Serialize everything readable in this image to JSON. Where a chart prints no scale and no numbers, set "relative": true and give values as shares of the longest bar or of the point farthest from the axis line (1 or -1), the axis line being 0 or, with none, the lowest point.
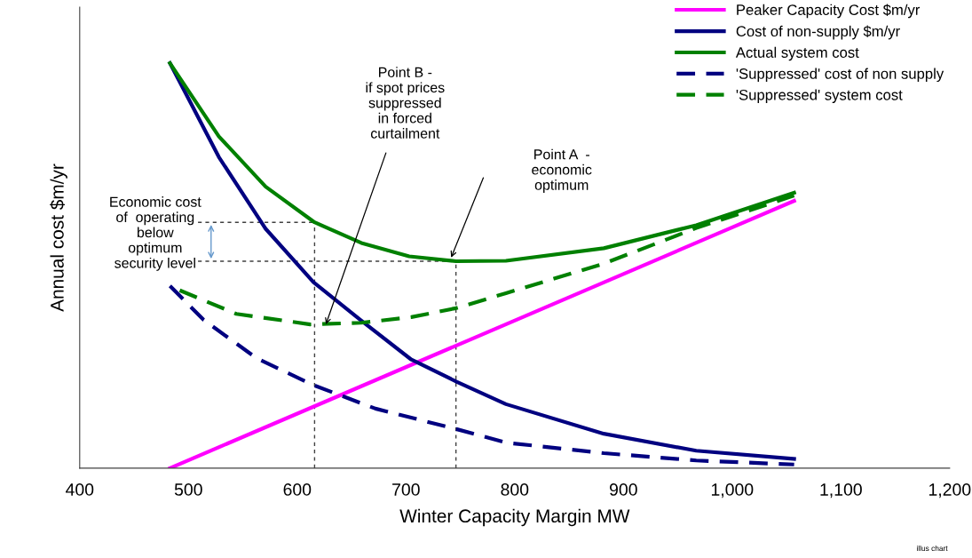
{
  "chart_data": {
    "type": "line",
    "relative": true,
    "xlabel": "Winter Capacity Margin MW",
    "ylabel": "Annual cost $m/yr",
    "xlim": [
      400,
      1200
    ],
    "xticks": [
      400,
      500,
      600,
      700,
      800,
      900,
      {
        "value": 1000,
        "label": "1,000"
      },
      {
        "value": 1100,
        "label": "1,100"
      },
      {
        "value": 1200,
        "label": "1,200"
      }
    ],
    "grid": false,
    "legend": "top right",
    "marker": "none",
    "series": [
      {
        "name": "Peaker Capacity Cost $m/yr",
        "color": "#ff00ff",
        "line_style": "solid",
        "x": [
          483,
          1057
        ],
        "values": [
          0,
          0.66
        ]
      },
      {
        "name": "Cost of non-supply $m/yr",
        "color": "#000080",
        "line_style": "solid",
        "x": [
          483,
          528,
          571,
          615,
          659,
          705,
          747,
          792,
          882,
          967,
          1057
        ],
        "values": [
          1.0,
          0.768,
          0.591,
          0.459,
          0.364,
          0.268,
          0.213,
          0.158,
          0.085,
          0.043,
          0.023
        ]
      },
      {
        "name": "Actual system cost",
        "color": "#008000",
        "line_style": "solid",
        "x": [
          483,
          528,
          571,
          616,
          659,
          703,
          746,
          792,
          882,
          967,
          1057
        ],
        "values": [
          1.0,
          0.819,
          0.695,
          0.607,
          0.556,
          0.523,
          0.511,
          0.512,
          0.543,
          0.6,
          0.68
        ]
      },
      {
        "name": "'Suppressed' cost of non supply",
        "color": "#000080",
        "line_style": "dashed",
        "x": [
          483,
          514,
          563,
          615,
          672,
          747,
          792,
          882,
          967,
          1057
        ],
        "values": [
          0.45,
          0.366,
          0.271,
          0.205,
          0.147,
          0.096,
          0.063,
          0.037,
          0.019,
          0.009
        ]
      },
      {
        "name": "'Suppressed' system cost",
        "color": "#008000",
        "line_style": "dashed",
        "x": [
          492,
          544,
          612,
          659,
          705,
          746,
          792,
          882,
          967,
          1057
        ],
        "values": [
          0.439,
          0.381,
          0.355,
          0.359,
          0.373,
          0.395,
          0.432,
          0.505,
          0.593,
          0.673
        ]
      }
    ],
    "ref_lines": [
      {
        "axis": "x",
        "value": 616,
        "color": "#404040",
        "line_style": "dashed"
      },
      {
        "axis": "x",
        "value": 746,
        "color": "#404040",
        "line_style": "dashed"
      },
      {
        "axis": "y",
        "value": 0.607,
        "color": "#404040",
        "line_style": "dashed"
      },
      {
        "axis": "y",
        "value": 0.511,
        "color": "#404040",
        "line_style": "dashed"
      }
    ],
    "annotations": [
      "Economic cost\nof  operating\nbelow\noptimum\nsecurity level",
      "Point B -\nif spot prices\nsuppressed\nin forced\ncurtailment",
      "Point A  -\neconomic\noptimum",
      "illus chart"
    ]
  }
}
